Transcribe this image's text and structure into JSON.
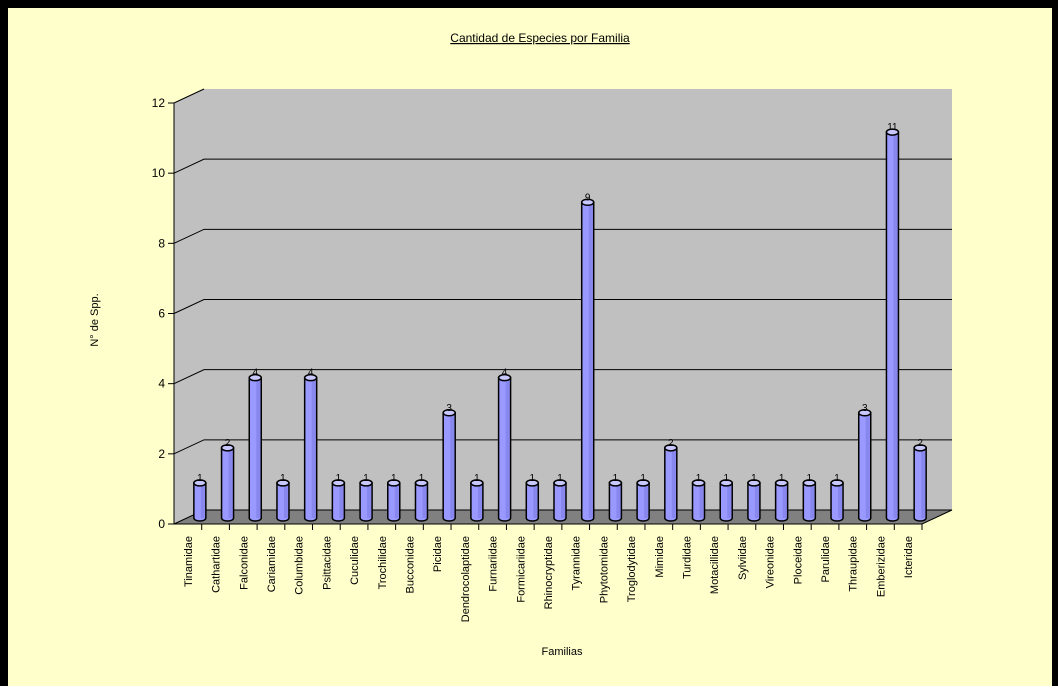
{
  "chart_data": {
    "type": "bar",
    "title": "Cantidad de Especies por Familia",
    "xlabel": "Familias",
    "ylabel": "N° de Spp.",
    "ylim": [
      0,
      12
    ],
    "yticks": [
      0,
      2,
      4,
      6,
      8,
      10,
      12
    ],
    "grid": true,
    "categories": [
      "Tinamidae",
      "Cathartidae",
      "Falconidae",
      "Cariamidae",
      "Columbidae",
      "Psittacidae",
      "Cuculidae",
      "Trochilidae",
      "Bucconidae",
      "Picidae",
      "Dendrocolaptidae",
      "Furnariidae",
      "Formicariidae",
      "Rhinocryptidae",
      "Tyrannidae",
      "Phytotomidae",
      "Troglodytidae",
      "Mimidae",
      "Turdidae",
      "Motacillidae",
      "Sylviidae",
      "Vireonidae",
      "Ploceidae",
      "Parulidae",
      "Thraupidae",
      "Emberizidae",
      "Icteridae"
    ],
    "values": [
      1,
      2,
      4,
      1,
      4,
      1,
      1,
      1,
      1,
      3,
      1,
      4,
      1,
      1,
      9,
      1,
      1,
      2,
      1,
      1,
      1,
      1,
      1,
      1,
      3,
      11,
      2
    ]
  },
  "colors": {
    "background": "#ffffcc",
    "plot_wall": "#c0c0c0",
    "plot_floor": "#808080",
    "bar_fill": "#9999ff",
    "bar_top": "#c8c8ff",
    "bar_dark": "#6666cc"
  }
}
